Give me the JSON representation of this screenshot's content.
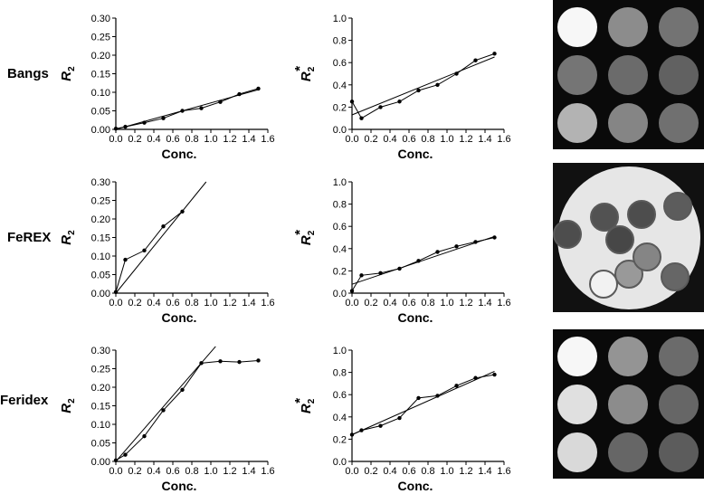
{
  "row_labels": [
    "Bangs",
    "FeREX",
    "Feridex"
  ],
  "y_axis_labels": {
    "r2": "R",
    "r2star": "R"
  },
  "chart_data": [
    {
      "type": "line",
      "row": "Bangs",
      "xlabel": "Conc.",
      "ylabel": "R2",
      "xlim": [
        0,
        1.6
      ],
      "ylim": [
        0,
        0.3
      ],
      "xticks": [
        "0.0",
        "0.2",
        "0.4",
        "0.6",
        "0.8",
        "1.0",
        "1.2",
        "1.4",
        "1.6"
      ],
      "yticks": [
        "0.00",
        "0.05",
        "0.10",
        "0.15",
        "0.20",
        "0.25",
        "0.30"
      ],
      "series": [
        {
          "kind": "data",
          "x": [
            0,
            0.1,
            0.3,
            0.5,
            0.7,
            0.9,
            1.1,
            1.3,
            1.5
          ],
          "y": [
            0.002,
            0.007,
            0.018,
            0.03,
            0.05,
            0.057,
            0.074,
            0.095,
            0.11
          ]
        },
        {
          "kind": "fit",
          "x": [
            0,
            1.5
          ],
          "y": [
            0.0,
            0.107
          ]
        }
      ]
    },
    {
      "type": "line",
      "row": "Bangs",
      "xlabel": "Conc.",
      "ylabel": "R2*",
      "xlim": [
        0,
        1.6
      ],
      "ylim": [
        0,
        1.0
      ],
      "xticks": [
        "0.0",
        "0.2",
        "0.4",
        "0.6",
        "0.8",
        "1.0",
        "1.2",
        "1.4",
        "1.6"
      ],
      "yticks": [
        "0.0",
        "0.2",
        "0.4",
        "0.6",
        "0.8",
        "1.0"
      ],
      "series": [
        {
          "kind": "data",
          "x": [
            0,
            0.1,
            0.3,
            0.5,
            0.7,
            0.9,
            1.1,
            1.3,
            1.5
          ],
          "y": [
            0.25,
            0.1,
            0.2,
            0.25,
            0.35,
            0.4,
            0.5,
            0.62,
            0.68
          ]
        },
        {
          "kind": "fit",
          "x": [
            0,
            1.5
          ],
          "y": [
            0.13,
            0.65
          ]
        }
      ]
    },
    {
      "type": "line",
      "row": "FeREX",
      "xlabel": "Conc.",
      "ylabel": "R2",
      "xlim": [
        0,
        1.6
      ],
      "ylim": [
        0,
        0.3
      ],
      "xticks": [
        "0.0",
        "0.2",
        "0.4",
        "0.6",
        "0.8",
        "1.0",
        "1.2",
        "1.4",
        "1.6"
      ],
      "yticks": [
        "0.00",
        "0.05",
        "0.10",
        "0.15",
        "0.20",
        "0.25",
        "0.30"
      ],
      "series": [
        {
          "kind": "data",
          "x": [
            0,
            0.1,
            0.3,
            0.5,
            0.7
          ],
          "y": [
            0.003,
            0.09,
            0.115,
            0.18,
            0.22
          ]
        },
        {
          "kind": "fit",
          "x": [
            0,
            0.95
          ],
          "y": [
            0.0,
            0.3
          ]
        }
      ]
    },
    {
      "type": "line",
      "row": "FeREX",
      "xlabel": "Conc.",
      "ylabel": "R2*",
      "xlim": [
        0,
        1.6
      ],
      "ylim": [
        0,
        1.0
      ],
      "xticks": [
        "0.0",
        "0.2",
        "0.4",
        "0.6",
        "0.8",
        "1.0",
        "1.2",
        "1.4",
        "1.6"
      ],
      "yticks": [
        "0.0",
        "0.2",
        "0.4",
        "0.6",
        "0.8",
        "1.0"
      ],
      "series": [
        {
          "kind": "data",
          "x": [
            0,
            0.1,
            0.3,
            0.5,
            0.7,
            0.9,
            1.1,
            1.3,
            1.5
          ],
          "y": [
            0.02,
            0.16,
            0.18,
            0.22,
            0.29,
            0.37,
            0.42,
            0.46,
            0.5
          ]
        },
        {
          "kind": "fit",
          "x": [
            0,
            1.5
          ],
          "y": [
            0.08,
            0.51
          ]
        }
      ]
    },
    {
      "type": "line",
      "row": "Feridex",
      "xlabel": "Conc.",
      "ylabel": "R2",
      "xlim": [
        0,
        1.6
      ],
      "ylim": [
        0,
        0.3
      ],
      "xticks": [
        "0.0",
        "0.2",
        "0.4",
        "0.6",
        "0.8",
        "1.0",
        "1.2",
        "1.4",
        "1.6"
      ],
      "yticks": [
        "0.00",
        "0.05",
        "0.10",
        "0.15",
        "0.20",
        "0.25",
        "0.30"
      ],
      "series": [
        {
          "kind": "data",
          "x": [
            0,
            0.1,
            0.3,
            0.5,
            0.7,
            0.9,
            1.1,
            1.3,
            1.5
          ],
          "y": [
            0.003,
            0.018,
            0.068,
            0.138,
            0.193,
            0.265,
            0.27,
            0.268,
            0.272
          ]
        },
        {
          "kind": "fit",
          "x": [
            0,
            1.05
          ],
          "y": [
            0.0,
            0.31
          ]
        }
      ]
    },
    {
      "type": "line",
      "row": "Feridex",
      "xlabel": "Conc.",
      "ylabel": "R2*",
      "xlim": [
        0,
        1.6
      ],
      "ylim": [
        0,
        1.0
      ],
      "xticks": [
        "0.0",
        "0.2",
        "0.4",
        "0.6",
        "0.8",
        "1.0",
        "1.2",
        "1.4",
        "1.6"
      ],
      "yticks": [
        "0.0",
        "0.2",
        "0.4",
        "0.6",
        "0.8",
        "1.0"
      ],
      "series": [
        {
          "kind": "data",
          "x": [
            0,
            0.1,
            0.3,
            0.5,
            0.7,
            0.9,
            1.1,
            1.3,
            1.5
          ],
          "y": [
            0.24,
            0.28,
            0.32,
            0.39,
            0.57,
            0.59,
            0.68,
            0.75,
            0.78
          ]
        },
        {
          "kind": "fit",
          "x": [
            0,
            1.5
          ],
          "y": [
            0.24,
            0.81
          ]
        }
      ]
    }
  ],
  "mri_images": [
    {
      "layout": "grid",
      "background": "#0a0a0a",
      "intensities": [
        [
          0.97,
          0.55,
          0.45
        ],
        [
          0.46,
          0.42,
          0.38
        ],
        [
          0.7,
          0.52,
          0.44
        ]
      ]
    },
    {
      "layout": "phantom",
      "background": "#111111",
      "intensities": [
        0.3,
        0.32,
        0.28,
        0.3,
        0.36,
        0.95,
        0.6,
        0.52,
        0.4
      ]
    },
    {
      "layout": "grid",
      "background": "#0a0a0a",
      "intensities": [
        [
          0.97,
          0.58,
          0.42
        ],
        [
          0.88,
          0.55,
          0.4
        ],
        [
          0.85,
          0.4,
          0.36
        ]
      ]
    }
  ]
}
